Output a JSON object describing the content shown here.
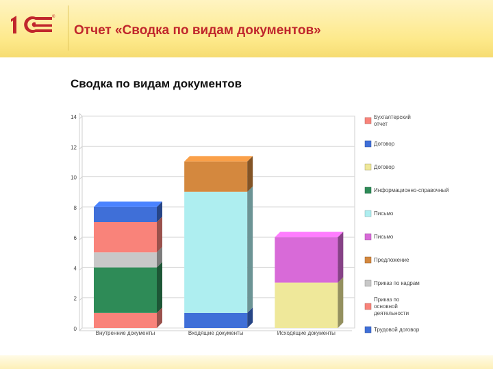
{
  "header": {
    "title": "Отчет «Сводка по видам документов»",
    "logo_text": "1С"
  },
  "chart_data": {
    "type": "bar",
    "stacked": true,
    "title": "Сводка по видам документов",
    "categories": [
      "Внутренние документы",
      "Входящие документы",
      "Исходящие документы"
    ],
    "ylim": [
      0,
      14
    ],
    "yticks": [
      0,
      2,
      4,
      6,
      8,
      10,
      12,
      14
    ],
    "grid": true,
    "legend_position": "right",
    "series": [
      {
        "name": "Бухгалтерский отчет",
        "color": "#f9837a",
        "values": [
          1,
          0,
          0
        ]
      },
      {
        "name": "Информационно-справочный",
        "color": "#2e8b57",
        "values": [
          3,
          0,
          0
        ]
      },
      {
        "name": "Приказ по кадрам",
        "color": "#c8c8c8",
        "values": [
          1,
          0,
          0
        ]
      },
      {
        "name": "Приказ по основной деятельности",
        "color": "#f9837a",
        "values": [
          2,
          0,
          0
        ]
      },
      {
        "name": "Договор",
        "color": "#3f6fd8",
        "values": [
          1,
          0,
          0
        ]
      },
      {
        "name": "Трудовой договор",
        "color": "#3f6fd8",
        "values": [
          0,
          1,
          0
        ]
      },
      {
        "name": "Письмо",
        "color": "#aeeef0",
        "values": [
          0,
          8,
          0
        ]
      },
      {
        "name": "Предложение",
        "color": "#d4883e",
        "values": [
          0,
          2,
          0
        ]
      },
      {
        "name": "Договор",
        "color": "#efe89a",
        "values": [
          0,
          0,
          3
        ]
      },
      {
        "name": "Письмо",
        "color": "#d86ad8",
        "values": [
          0,
          0,
          3
        ]
      }
    ],
    "legend": [
      {
        "label": "Бухгалтерский отчет",
        "color": "#f9837a"
      },
      {
        "label": "Договор",
        "color": "#3f6fd8"
      },
      {
        "label": "Договор",
        "color": "#efe89a"
      },
      {
        "label": "Информационно-справочный",
        "color": "#2e8b57"
      },
      {
        "label": "Письмо",
        "color": "#aeeef0"
      },
      {
        "label": "Письмо",
        "color": "#d86ad8"
      },
      {
        "label": "Предложение",
        "color": "#d4883e"
      },
      {
        "label": "Приказ по кадрам",
        "color": "#c8c8c8"
      },
      {
        "label": "Приказ по основной деятельности",
        "color": "#f9837a"
      },
      {
        "label": "Трудовой договор",
        "color": "#3f6fd8"
      }
    ]
  },
  "colors": {
    "header_title": "#c0262c",
    "logo": "#c0262c",
    "grid": "#d8d8d8",
    "axis_text": "#444444"
  }
}
